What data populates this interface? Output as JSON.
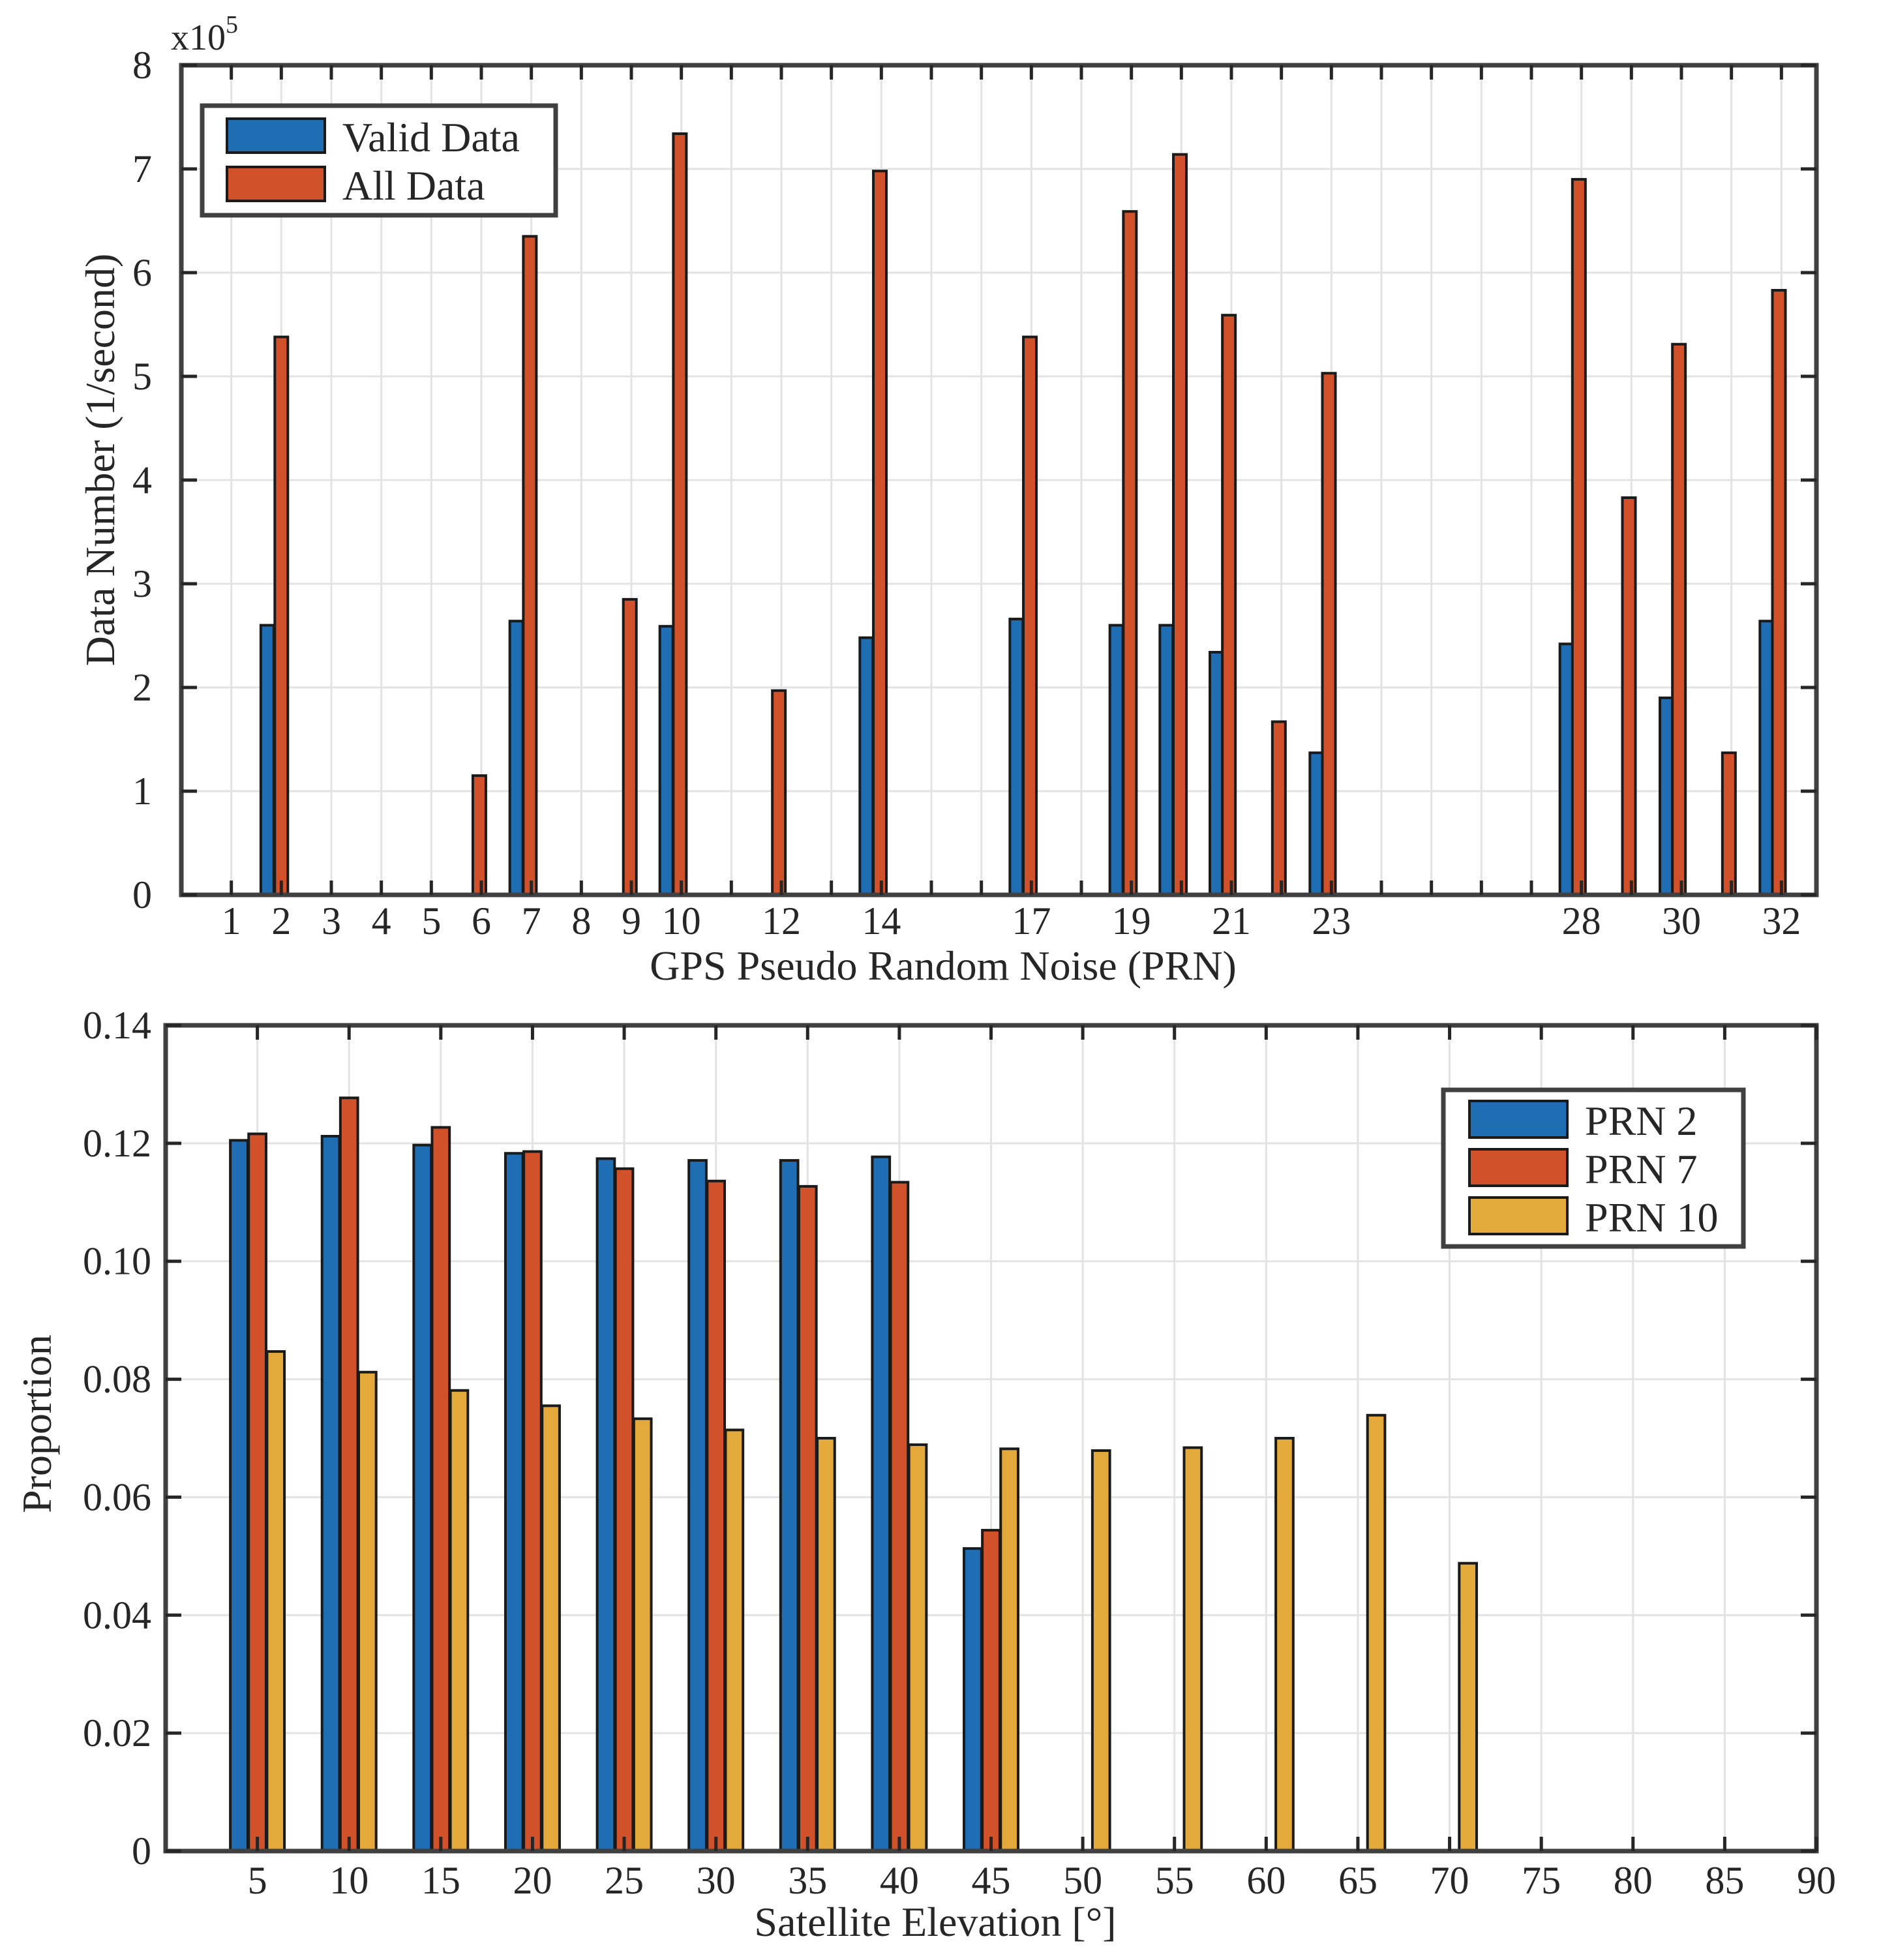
{
  "colors": {
    "blue": "#1f6db2",
    "orange": "#d1522a",
    "yellow": "#e3a93a"
  },
  "chart_data": [
    {
      "type": "bar",
      "xlabel": "GPS Pseudo Random Noise (PRN)",
      "ylabel": "Data Number  (1/second)",
      "y_exponent": "x10",
      "y_exponent_power": "5",
      "ylim": [
        0,
        8
      ],
      "yticks": [
        "0",
        "1",
        "2",
        "3",
        "4",
        "5",
        "6",
        "7",
        "8"
      ],
      "xlim": [
        0,
        32.7
      ],
      "x_tick_labels": [
        {
          "v": 1,
          "label": "1"
        },
        {
          "v": 2,
          "label": "2"
        },
        {
          "v": 3,
          "label": "3"
        },
        {
          "v": 4,
          "label": "4"
        },
        {
          "v": 5,
          "label": "5"
        },
        {
          "v": 6,
          "label": "6"
        },
        {
          "v": 7,
          "label": "7"
        },
        {
          "v": 8,
          "label": "8"
        },
        {
          "v": 9,
          "label": "9"
        },
        {
          "v": 10,
          "label": "10"
        },
        {
          "v": 12,
          "label": "12"
        },
        {
          "v": 14,
          "label": "14"
        },
        {
          "v": 17,
          "label": "17"
        },
        {
          "v": 19,
          "label": "19"
        },
        {
          "v": 21,
          "label": "21"
        },
        {
          "v": 23,
          "label": "23"
        },
        {
          "v": 28,
          "label": "28"
        },
        {
          "v": 30,
          "label": "30"
        },
        {
          "v": 32,
          "label": "32"
        }
      ],
      "legend": [
        "Valid Data",
        "All Data"
      ],
      "legend_position": "top-left",
      "series": [
        {
          "name": "Valid Data",
          "color": "blue",
          "points": [
            {
              "x": 1.72,
              "y": 2.6
            },
            {
              "x": 6.7,
              "y": 2.64
            },
            {
              "x": 9.7,
              "y": 2.59
            },
            {
              "x": 13.7,
              "y": 2.48
            },
            {
              "x": 16.7,
              "y": 2.66
            },
            {
              "x": 18.7,
              "y": 2.6
            },
            {
              "x": 19.7,
              "y": 2.6
            },
            {
              "x": 20.7,
              "y": 2.34
            },
            {
              "x": 22.7,
              "y": 1.37
            },
            {
              "x": 27.7,
              "y": 2.42
            },
            {
              "x": 29.7,
              "y": 1.9
            },
            {
              "x": 31.7,
              "y": 2.64
            }
          ]
        },
        {
          "name": "All Data",
          "color": "orange",
          "points": [
            {
              "x": 2.0,
              "y": 5.38
            },
            {
              "x": 5.96,
              "y": 1.15
            },
            {
              "x": 6.97,
              "y": 6.35
            },
            {
              "x": 8.97,
              "y": 2.85
            },
            {
              "x": 9.97,
              "y": 7.34
            },
            {
              "x": 11.95,
              "y": 1.97
            },
            {
              "x": 13.97,
              "y": 6.98
            },
            {
              "x": 16.97,
              "y": 5.38
            },
            {
              "x": 18.97,
              "y": 6.59
            },
            {
              "x": 19.97,
              "y": 7.14
            },
            {
              "x": 20.95,
              "y": 5.59
            },
            {
              "x": 21.95,
              "y": 1.67
            },
            {
              "x": 22.95,
              "y": 5.03
            },
            {
              "x": 27.95,
              "y": 6.9
            },
            {
              "x": 28.95,
              "y": 3.83
            },
            {
              "x": 29.95,
              "y": 5.31
            },
            {
              "x": 30.95,
              "y": 1.37
            },
            {
              "x": 31.95,
              "y": 5.83
            }
          ]
        }
      ]
    },
    {
      "type": "bar",
      "xlabel": "Satellite Elevation [°]",
      "ylabel": "Proportion",
      "ylim": [
        0,
        0.14
      ],
      "yticks": [
        "0",
        "0.02",
        "0.04",
        "0.06",
        "0.08",
        "0.10",
        "0.12",
        "0.14"
      ],
      "xlim": [
        0,
        90
      ],
      "categories": [
        "5",
        "10",
        "15",
        "20",
        "25",
        "30",
        "35",
        "40",
        "45",
        "50",
        "55",
        "60",
        "65",
        "70",
        "75",
        "80",
        "85",
        "90"
      ],
      "legend": [
        "PRN 2",
        "PRN 7",
        "PRN 10"
      ],
      "legend_position": "top-right",
      "series": [
        {
          "name": "PRN 2",
          "color": "blue",
          "values": [
            0.1205,
            0.1212,
            0.1197,
            0.1183,
            0.1174,
            0.1171,
            0.1171,
            0.1177,
            0.0513,
            null,
            null,
            null,
            null,
            null,
            null,
            null,
            null,
            null
          ]
        },
        {
          "name": "PRN 7",
          "color": "orange",
          "values": [
            0.1216,
            0.1277,
            0.1227,
            0.1186,
            0.1157,
            0.1136,
            0.1127,
            0.1134,
            0.0544,
            null,
            null,
            null,
            null,
            null,
            null,
            null,
            null,
            null
          ]
        },
        {
          "name": "PRN 10",
          "color": "yellow",
          "values": [
            0.0847,
            0.0812,
            0.0781,
            0.0755,
            0.0733,
            0.0714,
            0.07,
            0.0689,
            0.0682,
            0.0679,
            0.0684,
            0.07,
            0.0739,
            0.0488,
            null,
            null,
            null,
            null
          ]
        }
      ]
    }
  ]
}
